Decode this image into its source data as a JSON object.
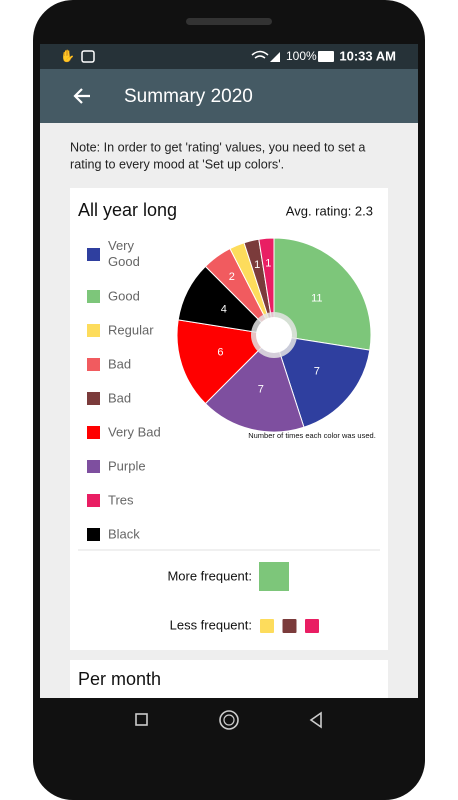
{
  "status_bar": {
    "battery": "100%",
    "time": "10:33 AM"
  },
  "app_bar": {
    "title": "Summary 2020"
  },
  "note_lines": [
    "Note: In order to get 'rating' values, you need to set a",
    "rating to every mood at 'Set up colors'."
  ],
  "card": {
    "title": "All year long",
    "avg_rating": "Avg. rating: 2.3",
    "legend": [
      {
        "name": "Very Good",
        "color": "#2f3f9f"
      },
      {
        "name": "Good",
        "color": "#7dc67a"
      },
      {
        "name": "Regular",
        "color": "#fddc5c"
      },
      {
        "name": "Bad",
        "color": "#f15b5f"
      },
      {
        "name": "Bad",
        "color": "#7b3b3b"
      },
      {
        "name": "Very Bad",
        "color": "#ff0000"
      },
      {
        "name": "Purple",
        "color": "#7e4f9f"
      },
      {
        "name": "Tres",
        "color": "#e91e63"
      },
      {
        "name": "Black",
        "color": "#000000"
      }
    ],
    "more_frequent_label": "More frequent:",
    "more_frequent_colors": [
      "#7dc67a"
    ],
    "less_frequent_label": "Less frequent:",
    "less_frequent_colors": [
      "#fddc5c",
      "#7b3b3b",
      "#e91e63"
    ]
  },
  "chart_data": {
    "type": "pie",
    "caption": "Number of times each color was used.",
    "values": [
      11,
      7,
      7,
      6,
      4,
      2,
      1,
      1,
      1
    ],
    "value_labels": [
      "11",
      "7",
      "7",
      "6",
      "4",
      "2",
      null,
      "1",
      "1"
    ],
    "colors": [
      "#7dc67a",
      "#2f3f9f",
      "#7e4f9f",
      "#ff0000",
      "#000000",
      "#f15b5f",
      "#fddc5c",
      "#7b3b3b",
      "#e91e63"
    ]
  },
  "next_card": {
    "title": "Per month"
  }
}
